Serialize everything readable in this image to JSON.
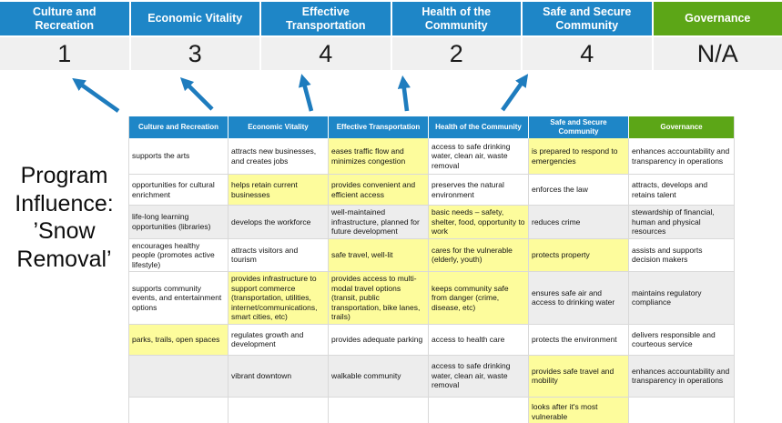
{
  "colors": {
    "category_blue": "#1E86C7",
    "governance_green": "#5CA617",
    "highlight_yellow": "#FDFC9C",
    "row_shade_grey": "#EDEDED",
    "score_row_grey": "#F0F0F0",
    "arrow_blue": "#1E7CBE",
    "grid_border": "#D9D9D9"
  },
  "title": "Program Influence: ’Snow Removal’",
  "summary": {
    "columns": [
      {
        "label": "Culture and Recreation",
        "score": "1",
        "header_color": "#1E86C7"
      },
      {
        "label": "Economic Vitality",
        "score": "3",
        "header_color": "#1E86C7"
      },
      {
        "label": "Effective Transportation",
        "score": "4",
        "header_color": "#1E86C7"
      },
      {
        "label": "Health of the Community",
        "score": "2",
        "header_color": "#1E86C7"
      },
      {
        "label": "Safe and Secure Community",
        "score": "4",
        "header_color": "#1E86C7"
      },
      {
        "label": "Governance",
        "score": "N/A",
        "header_color": "#5CA617"
      }
    ]
  },
  "arrows": {
    "count": 5,
    "color": "#1E7CBE",
    "icon": "up-arrow-icon"
  },
  "table": {
    "headers": [
      {
        "label": "Culture and Recreation",
        "color": "#1E86C7"
      },
      {
        "label": "Economic Vitality",
        "color": "#1E86C7"
      },
      {
        "label": "Effective Transportation",
        "color": "#1E86C7"
      },
      {
        "label": "Health of the Community",
        "color": "#1E86C7"
      },
      {
        "label": "Safe and Secure Community",
        "color": "#1E86C7"
      },
      {
        "label": "Governance",
        "color": "#5CA617"
      }
    ],
    "rows": [
      [
        {
          "t": "supports the arts",
          "bg": "w"
        },
        {
          "t": "attracts new businesses, and creates jobs",
          "bg": "w"
        },
        {
          "t": "eases traffic flow and minimizes congestion",
          "bg": "y"
        },
        {
          "t": "access to safe drinking water, clean air, waste removal",
          "bg": "w"
        },
        {
          "t": "is prepared to respond to emergencies",
          "bg": "y"
        },
        {
          "t": "enhances accountability and transparency in operations",
          "bg": "w"
        }
      ],
      [
        {
          "t": "opportunities for cultural enrichment",
          "bg": "w"
        },
        {
          "t": "helps retain current businesses",
          "bg": "y"
        },
        {
          "t": "provides convenient and efficient access",
          "bg": "y"
        },
        {
          "t": "preserves the natural environment",
          "bg": "w"
        },
        {
          "t": "enforces the law",
          "bg": "w"
        },
        {
          "t": "attracts, develops and retains talent",
          "bg": "w"
        }
      ],
      [
        {
          "t": "life-long learning opportunities (libraries)",
          "bg": "g"
        },
        {
          "t": "develops the workforce",
          "bg": "g"
        },
        {
          "t": "well-maintained infrastructure, planned for future development",
          "bg": "g"
        },
        {
          "t": "basic needs – safety, shelter, food, opportunity to work",
          "bg": "y"
        },
        {
          "t": "reduces crime",
          "bg": "g"
        },
        {
          "t": "stewardship of financial, human and physical resources",
          "bg": "g"
        }
      ],
      [
        {
          "t": "encourages healthy people (promotes active lifestyle)",
          "bg": "w"
        },
        {
          "t": "attracts visitors and tourism",
          "bg": "w"
        },
        {
          "t": "safe travel, well-lit",
          "bg": "y"
        },
        {
          "t": "cares for the vulnerable (elderly, youth)",
          "bg": "y"
        },
        {
          "t": "protects property",
          "bg": "y"
        },
        {
          "t": "assists and supports decision makers",
          "bg": "w"
        }
      ],
      [
        {
          "t": "supports community events, and entertainment options",
          "bg": "w"
        },
        {
          "t": "provides infrastructure to support commerce (transportation, utilities, internet/communications, smart cities, etc)",
          "bg": "y"
        },
        {
          "t": "provides access to multi-modal travel options (transit, public transportation, bike lanes, trails)",
          "bg": "y"
        },
        {
          "t": "keeps community safe from danger (crime, disease, etc)",
          "bg": "y"
        },
        {
          "t": "ensures safe air and access to drinking water",
          "bg": "g"
        },
        {
          "t": "maintains regulatory compliance",
          "bg": "g"
        }
      ],
      [
        {
          "t": "parks, trails, open spaces",
          "bg": "y"
        },
        {
          "t": "regulates growth and development",
          "bg": "w"
        },
        {
          "t": "provides adequate parking",
          "bg": "w"
        },
        {
          "t": "access to health care",
          "bg": "w"
        },
        {
          "t": "protects the environment",
          "bg": "w"
        },
        {
          "t": "delivers responsible and courteous service",
          "bg": "w"
        }
      ],
      [
        {
          "t": "",
          "bg": "g"
        },
        {
          "t": "vibrant downtown",
          "bg": "g"
        },
        {
          "t": "walkable community",
          "bg": "g"
        },
        {
          "t": "access to safe drinking water, clean air, waste removal",
          "bg": "g"
        },
        {
          "t": "provides safe travel and mobility",
          "bg": "y"
        },
        {
          "t": "enhances accountability and transparency in operations",
          "bg": "g"
        }
      ],
      [
        {
          "t": "",
          "bg": "w"
        },
        {
          "t": "",
          "bg": "w"
        },
        {
          "t": "",
          "bg": "w"
        },
        {
          "t": "",
          "bg": "w"
        },
        {
          "t": "looks after it's most vulnerable",
          "bg": "y"
        },
        {
          "t": "",
          "bg": "w"
        }
      ]
    ]
  }
}
